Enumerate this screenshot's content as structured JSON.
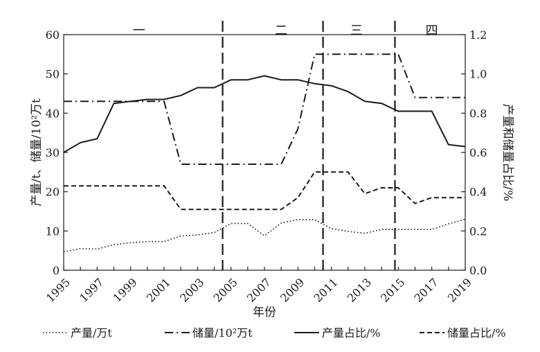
{
  "chart_data": {
    "type": "line",
    "xlabel": "年份",
    "ylabel_left": "产量/t、储量/10²万t",
    "ylabel_right": "产量和储量占比/%",
    "y_left_lim": [
      0,
      60
    ],
    "y_left_ticks": [
      "0",
      "10",
      "20",
      "30",
      "40",
      "50",
      "60"
    ],
    "y_right_lim": [
      0,
      1.2
    ],
    "y_right_ticks": [
      "0.0",
      "0.2",
      "0.4",
      "0.6",
      "0.8",
      "1.0",
      "1.2"
    ],
    "x_lim": [
      1995,
      2019
    ],
    "x_ticks": [
      "1995",
      "1997",
      "1999",
      "2001",
      "2003",
      "2005",
      "2007",
      "2009",
      "2011",
      "2013",
      "2015",
      "2017",
      "2019"
    ],
    "phase_lines": [
      2004.5,
      2010.5,
      2014.8
    ],
    "phases": [
      {
        "label": "一",
        "x": 1999.5
      },
      {
        "label": "二",
        "x": 2008
      },
      {
        "label": "三",
        "x": 2012.5
      },
      {
        "label": "四",
        "x": 2017
      }
    ],
    "grid": false,
    "legend_position": "bottom",
    "series": [
      {
        "name": "产量/万t",
        "axis": "left",
        "dash": "dotted",
        "x": [
          1995,
          1996,
          1997,
          1998,
          1999,
          2000,
          2001,
          2002,
          2003,
          2004,
          2005,
          2006,
          2007,
          2008,
          2009,
          2010,
          2011,
          2012,
          2013,
          2014,
          2015,
          2016,
          2017,
          2018,
          2019
        ],
        "y": [
          4.7,
          5.5,
          5.4,
          6.5,
          7.0,
          7.3,
          7.3,
          8.7,
          9.0,
          9.6,
          11.9,
          11.9,
          8.8,
          12.0,
          12.9,
          12.9,
          10.6,
          9.9,
          9.4,
          10.4,
          10.4,
          10.4,
          10.4,
          11.8,
          13.0
        ]
      },
      {
        "name": "储量/10²万t",
        "axis": "left",
        "dash": "dashdot",
        "x": [
          1995,
          2001,
          2002,
          2008,
          2009,
          2010,
          2011,
          2015,
          2016,
          2019
        ],
        "y": [
          43,
          43,
          27,
          27,
          36,
          55,
          55,
          55,
          44,
          44
        ]
      },
      {
        "name": "产量占比/%",
        "axis": "right",
        "dash": "solid",
        "x": [
          1995,
          1996,
          1997,
          1998,
          1999,
          2000,
          2001,
          2002,
          2003,
          2004,
          2005,
          2006,
          2007,
          2008,
          2009,
          2010,
          2011,
          2012,
          2013,
          2014,
          2015,
          2016,
          2017,
          2018,
          2019
        ],
        "y": [
          0.6,
          0.65,
          0.67,
          0.85,
          0.86,
          0.87,
          0.87,
          0.89,
          0.93,
          0.93,
          0.97,
          0.97,
          0.99,
          0.97,
          0.97,
          0.95,
          0.94,
          0.91,
          0.86,
          0.85,
          0.81,
          0.81,
          0.81,
          0.64,
          0.63
        ]
      },
      {
        "name": "储量占比/%",
        "axis": "right",
        "dash": "dashed",
        "x": [
          1995,
          2001,
          2002,
          2008,
          2009,
          2010,
          2011,
          2012,
          2013,
          2014,
          2015,
          2016,
          2017,
          2018,
          2019
        ],
        "y": [
          0.43,
          0.43,
          0.31,
          0.31,
          0.37,
          0.5,
          0.5,
          0.5,
          0.39,
          0.42,
          0.42,
          0.34,
          0.37,
          0.37,
          0.37
        ]
      }
    ]
  }
}
